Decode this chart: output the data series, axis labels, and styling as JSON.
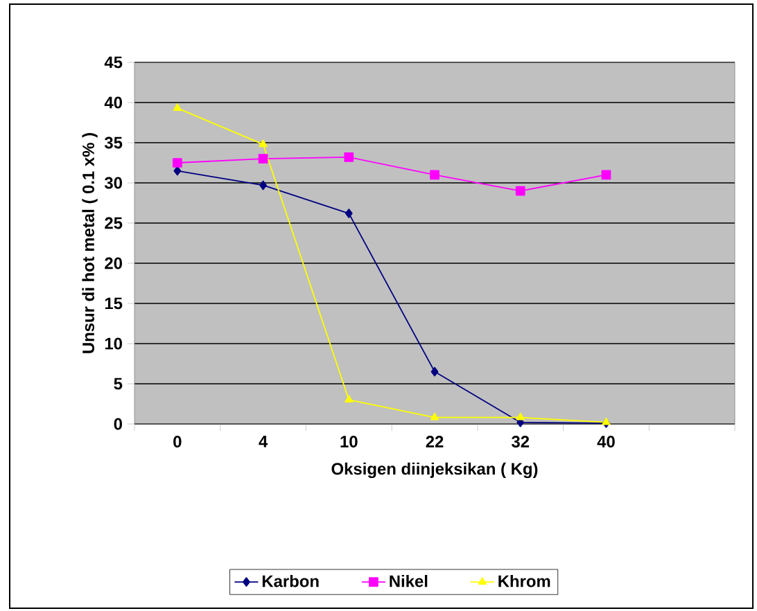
{
  "chart_data": {
    "type": "line",
    "xlabel": "Oksigen diinjeksikan ( Kg)",
    "ylabel": "Unsur di hot metal ( 0.1 x% )",
    "categories": [
      "0",
      "4",
      "10",
      "22",
      "32",
      "40",
      null
    ],
    "series": [
      {
        "name": "Karbon",
        "color": "#000080",
        "marker": "diamond",
        "values": [
          31.5,
          29.7,
          26.2,
          6.5,
          0.2,
          0.1,
          null
        ]
      },
      {
        "name": "Nikel",
        "color": "#ff00ff",
        "marker": "square",
        "values": [
          32.5,
          33,
          33.2,
          31,
          29,
          31,
          null
        ]
      },
      {
        "name": "Khrom",
        "color": "#ffff00",
        "marker": "triangle",
        "values": [
          39.3,
          34.8,
          3,
          0.8,
          0.8,
          0.2,
          null
        ]
      }
    ],
    "ylim": [
      0,
      45
    ],
    "yticks": [
      0,
      5,
      10,
      15,
      20,
      25,
      30,
      35,
      40,
      45
    ],
    "grid": "y",
    "legend": "bottom"
  }
}
